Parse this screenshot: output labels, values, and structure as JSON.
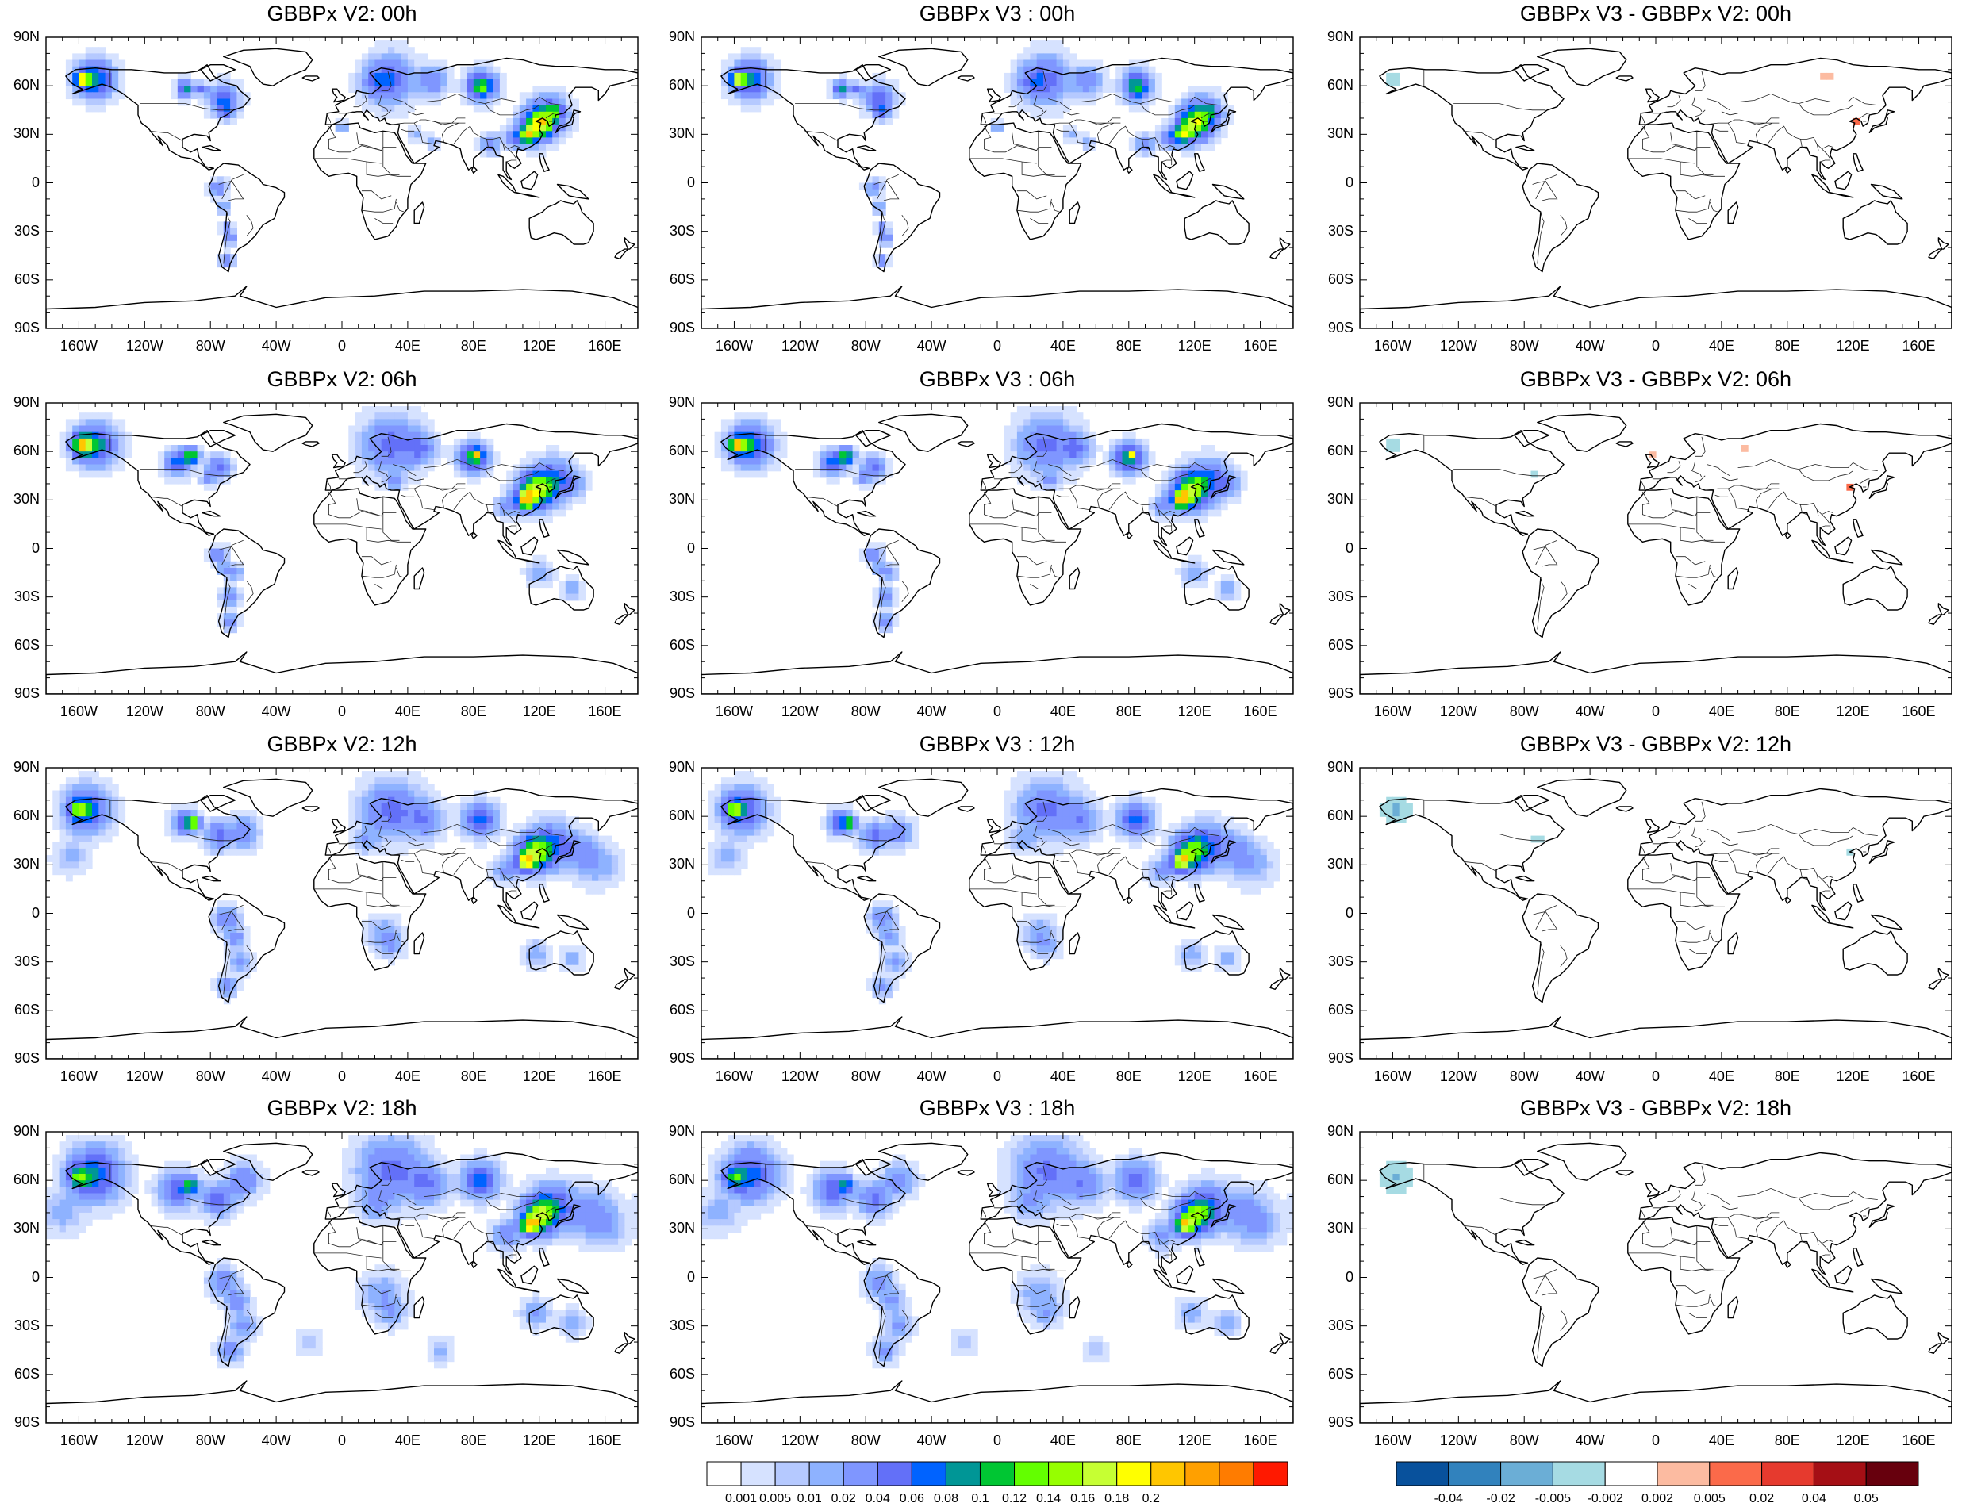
{
  "panels": [
    {
      "title": "GBBPx V2: 00h",
      "kind": "abs",
      "row": 0,
      "col": 0,
      "hour": "00h"
    },
    {
      "title": "GBBPx V3 : 00h",
      "kind": "abs",
      "row": 0,
      "col": 1,
      "hour": "00h"
    },
    {
      "title": "GBBPx V3 - GBBPx V2: 00h",
      "kind": "diff",
      "row": 0,
      "col": 2,
      "hour": "00h"
    },
    {
      "title": "GBBPx V2: 06h",
      "kind": "abs",
      "row": 1,
      "col": 0,
      "hour": "06h"
    },
    {
      "title": "GBBPx V3 : 06h",
      "kind": "abs",
      "row": 1,
      "col": 1,
      "hour": "06h"
    },
    {
      "title": "GBBPx V3 - GBBPx V2: 06h",
      "kind": "diff",
      "row": 1,
      "col": 2,
      "hour": "06h"
    },
    {
      "title": "GBBPx V2: 12h",
      "kind": "abs",
      "row": 2,
      "col": 0,
      "hour": "12h"
    },
    {
      "title": "GBBPx V3 : 12h",
      "kind": "abs",
      "row": 2,
      "col": 1,
      "hour": "12h"
    },
    {
      "title": "GBBPx V3 - GBBPx V2: 12h",
      "kind": "diff",
      "row": 2,
      "col": 2,
      "hour": "12h"
    },
    {
      "title": "GBBPx V2: 18h",
      "kind": "abs",
      "row": 3,
      "col": 0,
      "hour": "18h"
    },
    {
      "title": "GBBPx V3 : 18h",
      "kind": "abs",
      "row": 3,
      "col": 1,
      "hour": "18h"
    },
    {
      "title": "GBBPx V3 - GBBPx V2: 18h",
      "kind": "diff",
      "row": 3,
      "col": 2,
      "hour": "18h"
    }
  ],
  "axes": {
    "lon_range": [
      -180,
      180
    ],
    "lat_range": [
      -90,
      90
    ],
    "lon_ticks": [
      {
        "value": -160,
        "label": "160W"
      },
      {
        "value": -120,
        "label": "120W"
      },
      {
        "value": -80,
        "label": "80W"
      },
      {
        "value": -40,
        "label": "40W"
      },
      {
        "value": 0,
        "label": "0"
      },
      {
        "value": 40,
        "label": "40E"
      },
      {
        "value": 80,
        "label": "80E"
      },
      {
        "value": 120,
        "label": "120E"
      },
      {
        "value": 160,
        "label": "160E"
      }
    ],
    "lat_ticks": [
      {
        "value": 90,
        "label": "90N"
      },
      {
        "value": 60,
        "label": "60N"
      },
      {
        "value": 30,
        "label": "30N"
      },
      {
        "value": 0,
        "label": "0"
      },
      {
        "value": -30,
        "label": "30S"
      },
      {
        "value": -60,
        "label": "60S"
      },
      {
        "value": -90,
        "label": "90S"
      }
    ]
  },
  "colorbars": {
    "abs": {
      "colors": [
        "#ffffff",
        "#d6e2ff",
        "#b5c9ff",
        "#8eb2ff",
        "#7f96ff",
        "#6370f8",
        "#0063ff",
        "#009696",
        "#00c633",
        "#63ff00",
        "#96ff00",
        "#c6ff33",
        "#ffff00",
        "#ffc600",
        "#ffa000",
        "#ff7c00",
        "#ff1900"
      ],
      "labels": [
        "0.001",
        "0.005",
        "0.01",
        "0.02",
        "0.04",
        "0.06",
        "0.08",
        "0.1",
        "0.12",
        "0.14",
        "0.16",
        "0.18",
        "0.2"
      ]
    },
    "diff": {
      "colors": [
        "#08519c",
        "#3182bd",
        "#6baed6",
        "#a6dbe3",
        "#ffffff",
        "#fcbba1",
        "#fb6a4a",
        "#e63a2e",
        "#a50f15",
        "#67000d"
      ],
      "labels": [
        "-0.04",
        "-0.02",
        "-0.005",
        "-0.002",
        "0.002",
        "0.005",
        "0.02",
        "0.04",
        "0.05"
      ]
    }
  }
}
